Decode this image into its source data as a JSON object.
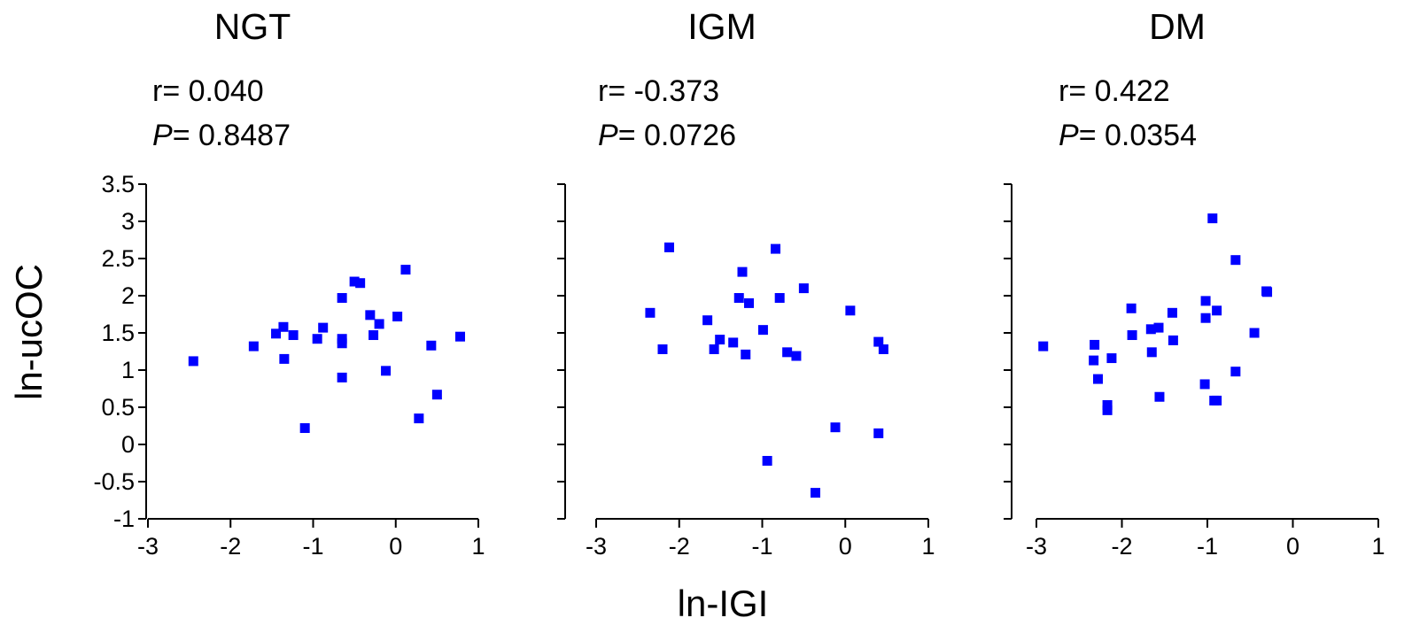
{
  "chart_data": {
    "type": "scatter",
    "xlabel": "ln-IGI",
    "ylabel": "ln-ucOC",
    "xlim": [
      -3,
      1
    ],
    "ylim": [
      -1,
      3.5
    ],
    "x_ticks": [
      "-3",
      "-2",
      "-1",
      "0",
      "1"
    ],
    "y_ticks": [
      "-1",
      "-0.5",
      "0",
      "0.5",
      "1",
      "1.5",
      "2",
      "2.5",
      "3",
      "3.5"
    ],
    "marker_color": "#0000ff",
    "grid": false,
    "panels": [
      {
        "title": "NGT",
        "r_label": "r= 0.040",
        "p_symbol": "P",
        "p_value": "= 0.8487",
        "points": [
          [
            -2.45,
            1.12
          ],
          [
            -1.72,
            1.32
          ],
          [
            -1.45,
            1.49
          ],
          [
            -1.36,
            1.58
          ],
          [
            -1.35,
            1.15
          ],
          [
            -1.24,
            1.47
          ],
          [
            -1.1,
            0.22
          ],
          [
            -0.95,
            1.42
          ],
          [
            -0.88,
            1.57
          ],
          [
            -0.65,
            1.97
          ],
          [
            -0.65,
            1.42
          ],
          [
            -0.65,
            1.36
          ],
          [
            -0.65,
            0.9
          ],
          [
            -0.5,
            2.19
          ],
          [
            -0.43,
            2.17
          ],
          [
            -0.31,
            1.74
          ],
          [
            -0.27,
            1.47
          ],
          [
            -0.2,
            1.62
          ],
          [
            -0.12,
            0.99
          ],
          [
            0.02,
            1.72
          ],
          [
            0.12,
            2.35
          ],
          [
            0.28,
            0.35
          ],
          [
            0.43,
            1.33
          ],
          [
            0.5,
            0.67
          ],
          [
            0.78,
            1.45
          ]
        ]
      },
      {
        "title": "IGM",
        "r_label": "r= -0.373",
        "p_symbol": "P",
        "p_value": "= 0.0726",
        "points": [
          [
            -2.35,
            1.77
          ],
          [
            -2.2,
            1.28
          ],
          [
            -2.12,
            2.65
          ],
          [
            -1.66,
            1.67
          ],
          [
            -1.58,
            1.28
          ],
          [
            -1.51,
            1.41
          ],
          [
            -1.35,
            1.37
          ],
          [
            -1.28,
            1.97
          ],
          [
            -1.24,
            2.32
          ],
          [
            -1.2,
            1.21
          ],
          [
            -1.16,
            1.9
          ],
          [
            -0.99,
            1.54
          ],
          [
            -0.94,
            -0.22
          ],
          [
            -0.84,
            2.63
          ],
          [
            -0.79,
            1.97
          ],
          [
            -0.7,
            1.24
          ],
          [
            -0.59,
            1.19
          ],
          [
            -0.5,
            2.1
          ],
          [
            -0.12,
            0.23
          ],
          [
            0.06,
            1.8
          ],
          [
            0.4,
            1.38
          ],
          [
            0.4,
            0.15
          ],
          [
            0.46,
            1.28
          ],
          [
            -0.36,
            -0.65
          ]
        ]
      },
      {
        "title": "DM",
        "r_label": "r= 0.422",
        "p_symbol": "P",
        "p_value": "= 0.0354",
        "points": [
          [
            -2.92,
            1.32
          ],
          [
            -2.32,
            1.34
          ],
          [
            -2.33,
            1.13
          ],
          [
            -2.28,
            0.88
          ],
          [
            -2.17,
            0.53
          ],
          [
            -2.17,
            0.46
          ],
          [
            -2.12,
            1.16
          ],
          [
            -1.89,
            1.83
          ],
          [
            -1.88,
            1.47
          ],
          [
            -1.66,
            1.55
          ],
          [
            -1.65,
            1.24
          ],
          [
            -1.57,
            1.57
          ],
          [
            -1.56,
            0.64
          ],
          [
            -1.41,
            1.77
          ],
          [
            -1.4,
            1.4
          ],
          [
            -1.02,
            1.93
          ],
          [
            -1.02,
            1.7
          ],
          [
            -1.03,
            0.81
          ],
          [
            -0.94,
            3.04
          ],
          [
            -0.92,
            0.59
          ],
          [
            -0.89,
            1.8
          ],
          [
            -0.89,
            0.59
          ],
          [
            -0.67,
            2.48
          ],
          [
            -0.67,
            0.98
          ],
          [
            -0.45,
            1.5
          ],
          [
            -0.31,
            2.06
          ],
          [
            -0.3,
            2.05
          ]
        ]
      }
    ]
  }
}
